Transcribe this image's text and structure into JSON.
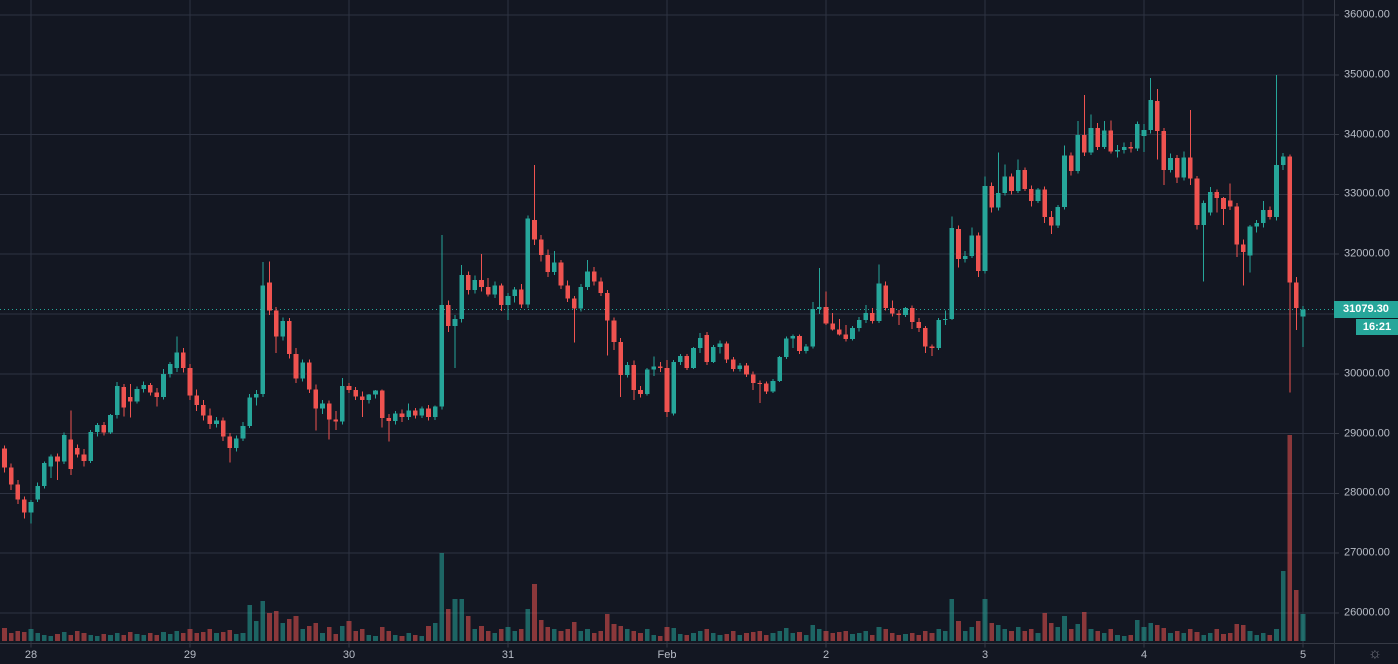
{
  "colors": {
    "background": "#131722",
    "grid": "#2e3342",
    "axis_border": "#363a45",
    "axis_text": "#b8bdc7",
    "up": "#26a69a",
    "down": "#ef5350",
    "volume_up_alpha": 0.55,
    "volume_down_alpha": 0.55,
    "last_price_bg": "#26a69a",
    "last_price_text": "#ffffff",
    "icon": "#787b86"
  },
  "price_axis": {
    "ticks": [
      {
        "price": 36000,
        "label": "36000.00"
      },
      {
        "price": 35000,
        "label": "35000.00"
      },
      {
        "price": 34000,
        "label": "34000.00"
      },
      {
        "price": 33000,
        "label": "33000.00"
      },
      {
        "price": 32000,
        "label": "32000.00"
      },
      {
        "price": 31000,
        "label": ""
      },
      {
        "price": 30000,
        "label": "30000.00"
      },
      {
        "price": 29000,
        "label": "29000.00"
      },
      {
        "price": 28000,
        "label": "28000.00"
      },
      {
        "price": 27000,
        "label": "27000.00"
      },
      {
        "price": 26000,
        "label": "26000.00"
      }
    ]
  },
  "time_axis": {
    "day_ticks": [
      {
        "candle_index": 4,
        "label": "28"
      },
      {
        "candle_index": 28,
        "label": "29"
      },
      {
        "candle_index": 52,
        "label": "30"
      },
      {
        "candle_index": 76,
        "label": "31"
      },
      {
        "candle_index": 100,
        "label": "Feb"
      },
      {
        "candle_index": 124,
        "label": "2"
      },
      {
        "candle_index": 148,
        "label": "3"
      },
      {
        "candle_index": 172,
        "label": "4"
      },
      {
        "candle_index": 196,
        "label": "5"
      }
    ],
    "settings_icon_glyph": "☼"
  },
  "last_price": {
    "label": "31079.30",
    "value": 31079.3,
    "countdown": "16:21"
  },
  "chart_data": {
    "type": "candlestick",
    "title": "",
    "legend_visible": false,
    "grid": true,
    "y_axis_range_visible": [
      25150,
      36250
    ],
    "columns": [
      "open",
      "high",
      "low",
      "close",
      "volume_rel"
    ],
    "candles": [
      [
        28750,
        28800,
        28350,
        28430,
        13
      ],
      [
        28430,
        28500,
        28060,
        28150,
        8
      ],
      [
        28150,
        28220,
        27820,
        27900,
        10
      ],
      [
        27900,
        27950,
        27580,
        27680,
        9
      ],
      [
        27680,
        27890,
        27500,
        27860,
        12
      ],
      [
        27900,
        28180,
        27860,
        28120,
        8
      ],
      [
        28120,
        28530,
        28080,
        28510,
        6
      ],
      [
        28450,
        28650,
        28260,
        28620,
        5
      ],
      [
        28620,
        28670,
        28220,
        28530,
        7
      ],
      [
        28530,
        29020,
        28490,
        28980,
        9
      ],
      [
        28900,
        29390,
        28310,
        28410,
        6
      ],
      [
        28760,
        28820,
        28600,
        28650,
        10
      ],
      [
        28650,
        28740,
        28450,
        28540,
        8
      ],
      [
        28540,
        29060,
        28510,
        29030,
        6
      ],
      [
        29030,
        29180,
        28950,
        29140,
        5
      ],
      [
        29140,
        29190,
        28970,
        29020,
        7
      ],
      [
        29020,
        29330,
        28990,
        29310,
        6
      ],
      [
        29310,
        29860,
        29250,
        29800,
        8
      ],
      [
        29780,
        29830,
        29290,
        29440,
        6
      ],
      [
        29610,
        29830,
        29270,
        29540,
        9
      ],
      [
        29540,
        29790,
        29500,
        29750,
        7
      ],
      [
        29750,
        29870,
        29690,
        29810,
        6
      ],
      [
        29810,
        29850,
        29640,
        29690,
        8
      ],
      [
        29690,
        29760,
        29450,
        29610,
        6
      ],
      [
        29610,
        30080,
        29570,
        30000,
        9
      ],
      [
        30000,
        30200,
        29940,
        30160,
        7
      ],
      [
        30100,
        30620,
        30030,
        30360,
        10
      ],
      [
        30360,
        30430,
        30020,
        30100,
        8
      ],
      [
        30100,
        30160,
        29560,
        29640,
        12
      ],
      [
        29640,
        29740,
        29380,
        29480,
        8
      ],
      [
        29480,
        29560,
        29220,
        29300,
        9
      ],
      [
        29300,
        29420,
        29080,
        29160,
        12
      ],
      [
        29160,
        29280,
        29100,
        29220,
        8
      ],
      [
        29220,
        29270,
        28880,
        28950,
        9
      ],
      [
        28950,
        29010,
        28520,
        28760,
        11
      ],
      [
        28760,
        28970,
        28700,
        28920,
        7
      ],
      [
        28920,
        29190,
        28880,
        29130,
        8
      ],
      [
        29130,
        29660,
        29090,
        29600,
        36
      ],
      [
        29600,
        29730,
        29470,
        29660,
        20
      ],
      [
        29660,
        31870,
        29610,
        31480,
        40
      ],
      [
        31530,
        31880,
        30980,
        31060,
        28
      ],
      [
        31060,
        31120,
        30350,
        30620,
        30
      ],
      [
        30620,
        30940,
        30560,
        30880,
        18
      ],
      [
        30880,
        30930,
        30260,
        30330,
        22
      ],
      [
        30330,
        30430,
        29850,
        29920,
        25
      ],
      [
        29920,
        30240,
        29870,
        30190,
        12
      ],
      [
        30190,
        30240,
        29680,
        29740,
        15
      ],
      [
        29740,
        29820,
        29050,
        29420,
        18
      ],
      [
        29420,
        29560,
        29330,
        29500,
        8
      ],
      [
        29500,
        29550,
        28900,
        29240,
        14
      ],
      [
        29240,
        29380,
        29060,
        29200,
        7
      ],
      [
        29200,
        29930,
        29150,
        29800,
        15
      ],
      [
        29800,
        29850,
        29680,
        29730,
        20
      ],
      [
        29730,
        29780,
        29560,
        29620,
        10
      ],
      [
        29620,
        29700,
        29280,
        29560,
        12
      ],
      [
        29560,
        29660,
        29500,
        29650,
        6
      ],
      [
        29650,
        29730,
        29590,
        29720,
        5
      ],
      [
        29720,
        29740,
        29100,
        29260,
        14
      ],
      [
        29260,
        29330,
        28870,
        29210,
        10
      ],
      [
        29210,
        29380,
        29150,
        29340,
        6
      ],
      [
        29340,
        29400,
        29190,
        29280,
        5
      ],
      [
        29280,
        29500,
        29230,
        29390,
        8
      ],
      [
        29390,
        29430,
        29250,
        29300,
        6
      ],
      [
        29300,
        29450,
        29260,
        29420,
        5
      ],
      [
        29420,
        29480,
        29220,
        29280,
        15
      ],
      [
        29280,
        29470,
        29230,
        29450,
        18
      ],
      [
        29450,
        32320,
        29400,
        31150,
        88
      ],
      [
        31150,
        31230,
        30700,
        30800,
        32
      ],
      [
        30800,
        30980,
        30100,
        30920,
        42
      ],
      [
        30920,
        31820,
        30860,
        31650,
        42
      ],
      [
        31650,
        31710,
        31330,
        31400,
        25
      ],
      [
        31400,
        31640,
        31340,
        31570,
        12
      ],
      [
        31570,
        32000,
        31380,
        31450,
        15
      ],
      [
        31450,
        31600,
        31290,
        31330,
        10
      ],
      [
        31330,
        31540,
        31270,
        31480,
        8
      ],
      [
        31480,
        31510,
        31050,
        31150,
        12
      ],
      [
        31150,
        31350,
        30900,
        31300,
        14
      ],
      [
        31300,
        31450,
        31190,
        31410,
        10
      ],
      [
        31410,
        31500,
        31100,
        31160,
        12
      ],
      [
        31160,
        32650,
        31100,
        32600,
        32
      ],
      [
        32570,
        33490,
        32150,
        32250,
        57
      ],
      [
        32250,
        32320,
        31880,
        31990,
        21
      ],
      [
        31990,
        32080,
        31620,
        31700,
        14
      ],
      [
        31700,
        32050,
        31650,
        31860,
        12
      ],
      [
        31860,
        31900,
        31420,
        31480,
        10
      ],
      [
        31480,
        31560,
        31200,
        31260,
        12
      ],
      [
        31260,
        31300,
        30520,
        31090,
        19
      ],
      [
        31090,
        31500,
        31040,
        31450,
        10
      ],
      [
        31450,
        31900,
        31400,
        31710,
        12
      ],
      [
        31710,
        31790,
        31480,
        31540,
        8
      ],
      [
        31540,
        31610,
        31300,
        31350,
        10
      ],
      [
        31350,
        31400,
        30310,
        30890,
        27
      ],
      [
        30890,
        30940,
        30400,
        30530,
        17
      ],
      [
        30530,
        30600,
        29610,
        29980,
        15
      ],
      [
        29980,
        30200,
        29940,
        30150,
        12
      ],
      [
        30150,
        30220,
        29560,
        29730,
        10
      ],
      [
        29730,
        29800,
        29600,
        29660,
        8
      ],
      [
        29660,
        30100,
        29640,
        30070,
        12
      ],
      [
        30070,
        30290,
        29960,
        30120,
        6
      ],
      [
        30120,
        30200,
        30030,
        30100,
        5
      ],
      [
        30100,
        30230,
        29280,
        29360,
        14
      ],
      [
        29340,
        30230,
        29300,
        30200,
        13
      ],
      [
        30200,
        30330,
        30150,
        30300,
        7
      ],
      [
        30300,
        30330,
        30060,
        30100,
        6
      ],
      [
        30100,
        30450,
        30080,
        30430,
        8
      ],
      [
        30430,
        30680,
        30350,
        30600,
        10
      ],
      [
        30650,
        30700,
        30150,
        30200,
        12
      ],
      [
        30200,
        30480,
        30180,
        30450,
        8
      ],
      [
        30450,
        30560,
        30340,
        30510,
        6
      ],
      [
        30510,
        30540,
        30180,
        30240,
        7
      ],
      [
        30240,
        30280,
        30040,
        30080,
        10
      ],
      [
        30080,
        30180,
        30040,
        30140,
        6
      ],
      [
        30140,
        30180,
        29950,
        29990,
        8
      ],
      [
        29990,
        30040,
        29730,
        29850,
        9
      ],
      [
        29850,
        29890,
        29510,
        29840,
        10
      ],
      [
        29840,
        29870,
        29660,
        29700,
        6
      ],
      [
        29700,
        29910,
        29680,
        29880,
        8
      ],
      [
        29880,
        30300,
        29860,
        30280,
        10
      ],
      [
        30280,
        30620,
        30250,
        30590,
        13
      ],
      [
        30590,
        30660,
        30430,
        30630,
        8
      ],
      [
        30630,
        30660,
        30330,
        30380,
        9
      ],
      [
        30380,
        30500,
        30340,
        30460,
        6
      ],
      [
        30460,
        31200,
        30420,
        31080,
        16
      ],
      [
        31080,
        31770,
        31000,
        31120,
        12
      ],
      [
        31120,
        31380,
        30820,
        30840,
        10
      ],
      [
        30840,
        31020,
        30720,
        30740,
        8
      ],
      [
        30740,
        30920,
        30640,
        30660,
        9
      ],
      [
        30660,
        30820,
        30540,
        30580,
        10
      ],
      [
        30580,
        30800,
        30560,
        30770,
        7
      ],
      [
        30770,
        30950,
        30710,
        30900,
        8
      ],
      [
        30900,
        31150,
        30850,
        31020,
        10
      ],
      [
        31020,
        31100,
        30840,
        30880,
        6
      ],
      [
        30880,
        31830,
        30850,
        31510,
        14
      ],
      [
        31480,
        31540,
        31060,
        31100,
        12
      ],
      [
        31100,
        31230,
        30960,
        31010,
        8
      ],
      [
        31010,
        31070,
        30820,
        30980,
        6
      ],
      [
        30980,
        31120,
        30950,
        31100,
        7
      ],
      [
        31100,
        31140,
        30750,
        30870,
        8
      ],
      [
        30870,
        30930,
        30700,
        30770,
        6
      ],
      [
        30770,
        30800,
        30350,
        30460,
        10
      ],
      [
        30460,
        30490,
        30300,
        30430,
        8
      ],
      [
        30430,
        30930,
        30400,
        30900,
        12
      ],
      [
        30900,
        31060,
        30820,
        30920,
        10
      ],
      [
        30920,
        32630,
        30900,
        32440,
        42
      ],
      [
        32420,
        32480,
        31780,
        31920,
        20
      ],
      [
        31920,
        32050,
        31860,
        31970,
        10
      ],
      [
        31970,
        32450,
        31940,
        32310,
        14
      ],
      [
        32310,
        32360,
        31620,
        31720,
        20
      ],
      [
        31720,
        33300,
        31680,
        33140,
        42
      ],
      [
        33140,
        33200,
        32700,
        32780,
        18
      ],
      [
        32780,
        33700,
        32730,
        33020,
        16
      ],
      [
        33020,
        33500,
        32980,
        33300,
        12
      ],
      [
        33300,
        33350,
        33000,
        33060,
        10
      ],
      [
        33060,
        33580,
        33020,
        33410,
        14
      ],
      [
        33410,
        33450,
        33060,
        33090,
        10
      ],
      [
        33090,
        33150,
        32800,
        32890,
        12
      ],
      [
        32890,
        33110,
        32860,
        33080,
        8
      ],
      [
        33080,
        33130,
        32520,
        32620,
        28
      ],
      [
        32620,
        32720,
        32340,
        32480,
        18
      ],
      [
        32480,
        32820,
        32440,
        32790,
        14
      ],
      [
        32790,
        33820,
        32750,
        33650,
        25
      ],
      [
        33650,
        33700,
        33320,
        33390,
        12
      ],
      [
        33390,
        34230,
        33350,
        33990,
        17
      ],
      [
        33990,
        34660,
        33640,
        33700,
        29
      ],
      [
        33700,
        34340,
        33660,
        34110,
        12
      ],
      [
        34110,
        34190,
        33740,
        33790,
        10
      ],
      [
        33790,
        34230,
        33760,
        34070,
        8
      ],
      [
        34070,
        34240,
        33680,
        33720,
        12
      ],
      [
        33720,
        33830,
        33620,
        33740,
        6
      ],
      [
        33740,
        33870,
        33680,
        33790,
        5
      ],
      [
        33790,
        33880,
        33700,
        33770,
        6
      ],
      [
        33770,
        34220,
        33730,
        34180,
        21
      ],
      [
        33980,
        34180,
        33710,
        34080,
        14
      ],
      [
        34080,
        34950,
        34020,
        34580,
        18
      ],
      [
        34560,
        34760,
        33580,
        34060,
        16
      ],
      [
        34060,
        34110,
        33160,
        33410,
        13
      ],
      [
        33410,
        33680,
        33370,
        33610,
        8
      ],
      [
        33610,
        33660,
        33190,
        33280,
        10
      ],
      [
        33280,
        33720,
        33230,
        33620,
        8
      ],
      [
        33620,
        34410,
        33160,
        33270,
        12
      ],
      [
        33270,
        33310,
        32410,
        32490,
        9
      ],
      [
        32490,
        32900,
        31540,
        32860,
        6
      ],
      [
        32700,
        33120,
        32650,
        33040,
        8
      ],
      [
        33040,
        33080,
        32700,
        32940,
        12
      ],
      [
        32940,
        32960,
        32490,
        32760,
        7
      ],
      [
        32900,
        33180,
        32740,
        32800,
        8
      ],
      [
        32800,
        32860,
        31950,
        32160,
        17
      ],
      [
        32160,
        32250,
        31480,
        32040,
        16
      ],
      [
        31980,
        32490,
        31690,
        32460,
        10
      ],
      [
        32460,
        32570,
        32360,
        32520,
        6
      ],
      [
        32520,
        32890,
        32450,
        32740,
        8
      ],
      [
        32740,
        32800,
        32580,
        32620,
        6
      ],
      [
        32620,
        35000,
        32560,
        33490,
        12
      ],
      [
        33490,
        33690,
        33410,
        33630,
        70
      ],
      [
        33630,
        33670,
        29690,
        31530,
        206
      ],
      [
        31530,
        31620,
        30730,
        31100,
        51
      ],
      [
        30960,
        31130,
        30450,
        31079.3,
        27
      ]
    ]
  }
}
